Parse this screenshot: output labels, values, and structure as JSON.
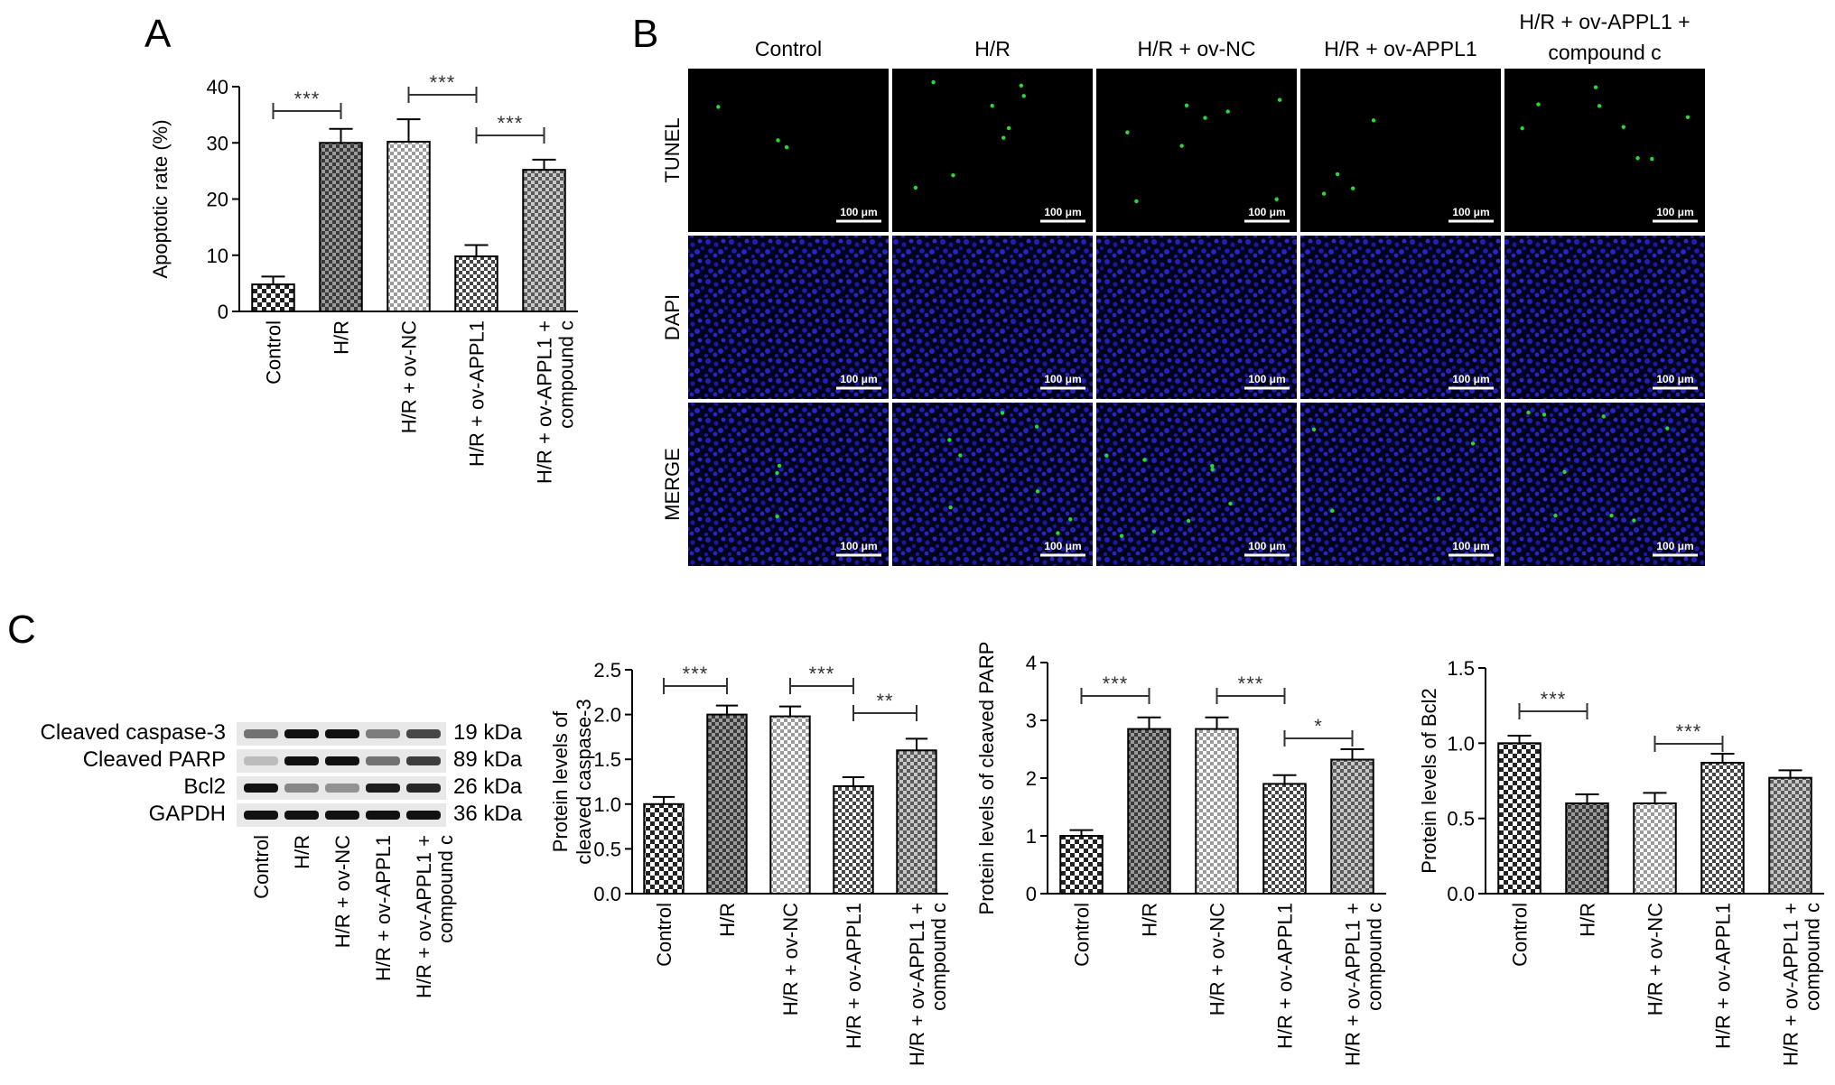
{
  "panels": {
    "A": {
      "letter": "A"
    },
    "B": {
      "letter": "B",
      "columns": [
        "Control",
        "H/R",
        "H/R + ov-NC",
        "H/R + ov-APPL1",
        "H/R + ov-APPL1 +\ncompound c"
      ],
      "rows": [
        "TUNEL",
        "DAPI",
        "MERGE"
      ],
      "scale_bar": "100 μm",
      "stain_colors": {
        "tunel": "#22dd33",
        "dapi": "#1a1aa8",
        "background": "#000000"
      }
    },
    "C": {
      "letter": "C",
      "blot": {
        "proteins": [
          "Cleaved caspase-3",
          "Cleaved PARP",
          "Bcl2",
          "GAPDH"
        ],
        "sizes": [
          "19 kDa",
          "89 kDa",
          "26 kDa",
          "36 kDa"
        ],
        "lanes": [
          "Control",
          "H/R",
          "H/R + ov-NC",
          "H/R + ov-APPL1",
          "H/R + ov-APPL1 +\ncompound c"
        ]
      }
    }
  },
  "chart_data": [
    {
      "type": "bar",
      "categories": [
        "Control",
        "H/R",
        "H/R + ov-NC",
        "H/R + ov-APPL1",
        "H/R + ov-APPL1 +\ncompound c"
      ],
      "values": [
        4.8,
        30,
        30.2,
        9.8,
        25.2
      ],
      "errors": [
        1.4,
        2.5,
        4.0,
        2.0,
        1.8
      ],
      "ylabel": "Apoptotic rate (%)",
      "ylim": [
        0,
        40
      ],
      "yticks": [
        "0",
        "10",
        "20",
        "30",
        "40"
      ],
      "significance": [
        {
          "from": 0,
          "to": 1,
          "label": "***"
        },
        {
          "from": 2,
          "to": 3,
          "label": "***"
        },
        {
          "from": 3,
          "to": 4,
          "label": "***"
        }
      ]
    },
    {
      "type": "bar",
      "categories": [
        "Control",
        "H/R",
        "H/R + ov-NC",
        "H/R + ov-APPL1",
        "H/R + ov-APPL1 +\ncompound c"
      ],
      "values": [
        1.0,
        2.0,
        1.98,
        1.2,
        1.6
      ],
      "errors": [
        0.08,
        0.1,
        0.11,
        0.1,
        0.13
      ],
      "ylabel": "Protein levels of\ncleaved caspase-3",
      "ylim": [
        0,
        2.5
      ],
      "yticks": [
        "0.0",
        "0.5",
        "1.0",
        "1.5",
        "2.0",
        "2.5"
      ],
      "significance": [
        {
          "from": 0,
          "to": 1,
          "label": "***"
        },
        {
          "from": 2,
          "to": 3,
          "label": "***"
        },
        {
          "from": 3,
          "to": 4,
          "label": "**"
        }
      ]
    },
    {
      "type": "bar",
      "categories": [
        "Control",
        "H/R",
        "H/R + ov-NC",
        "H/R + ov-APPL1",
        "H/R + ov-APPL1 +\ncompound c"
      ],
      "values": [
        1.0,
        2.85,
        2.85,
        1.9,
        2.32
      ],
      "errors": [
        0.1,
        0.2,
        0.2,
        0.15,
        0.18
      ],
      "ylabel": "Protein levels of cleaved PARP",
      "ylim": [
        0,
        4
      ],
      "yticks": [
        "0",
        "1",
        "2",
        "3",
        "4"
      ],
      "significance": [
        {
          "from": 0,
          "to": 1,
          "label": "***"
        },
        {
          "from": 2,
          "to": 3,
          "label": "***"
        },
        {
          "from": 3,
          "to": 4,
          "label": "*"
        }
      ]
    },
    {
      "type": "bar",
      "categories": [
        "Control",
        "H/R",
        "H/R + ov-NC",
        "H/R + ov-APPL1",
        "H/R + ov-APPL1 +\ncompound c"
      ],
      "values": [
        1.0,
        0.6,
        0.6,
        0.87,
        0.77
      ],
      "errors": [
        0.05,
        0.06,
        0.07,
        0.06,
        0.05
      ],
      "ylabel": "Protein levels of Bcl2",
      "ylim": [
        0,
        1.5
      ],
      "yticks": [
        "0.0",
        "0.5",
        "1.0",
        "1.5"
      ],
      "significance": [
        {
          "from": 0,
          "to": 1,
          "label": "***"
        },
        {
          "from": 2,
          "to": 3,
          "label": "***"
        }
      ]
    }
  ]
}
